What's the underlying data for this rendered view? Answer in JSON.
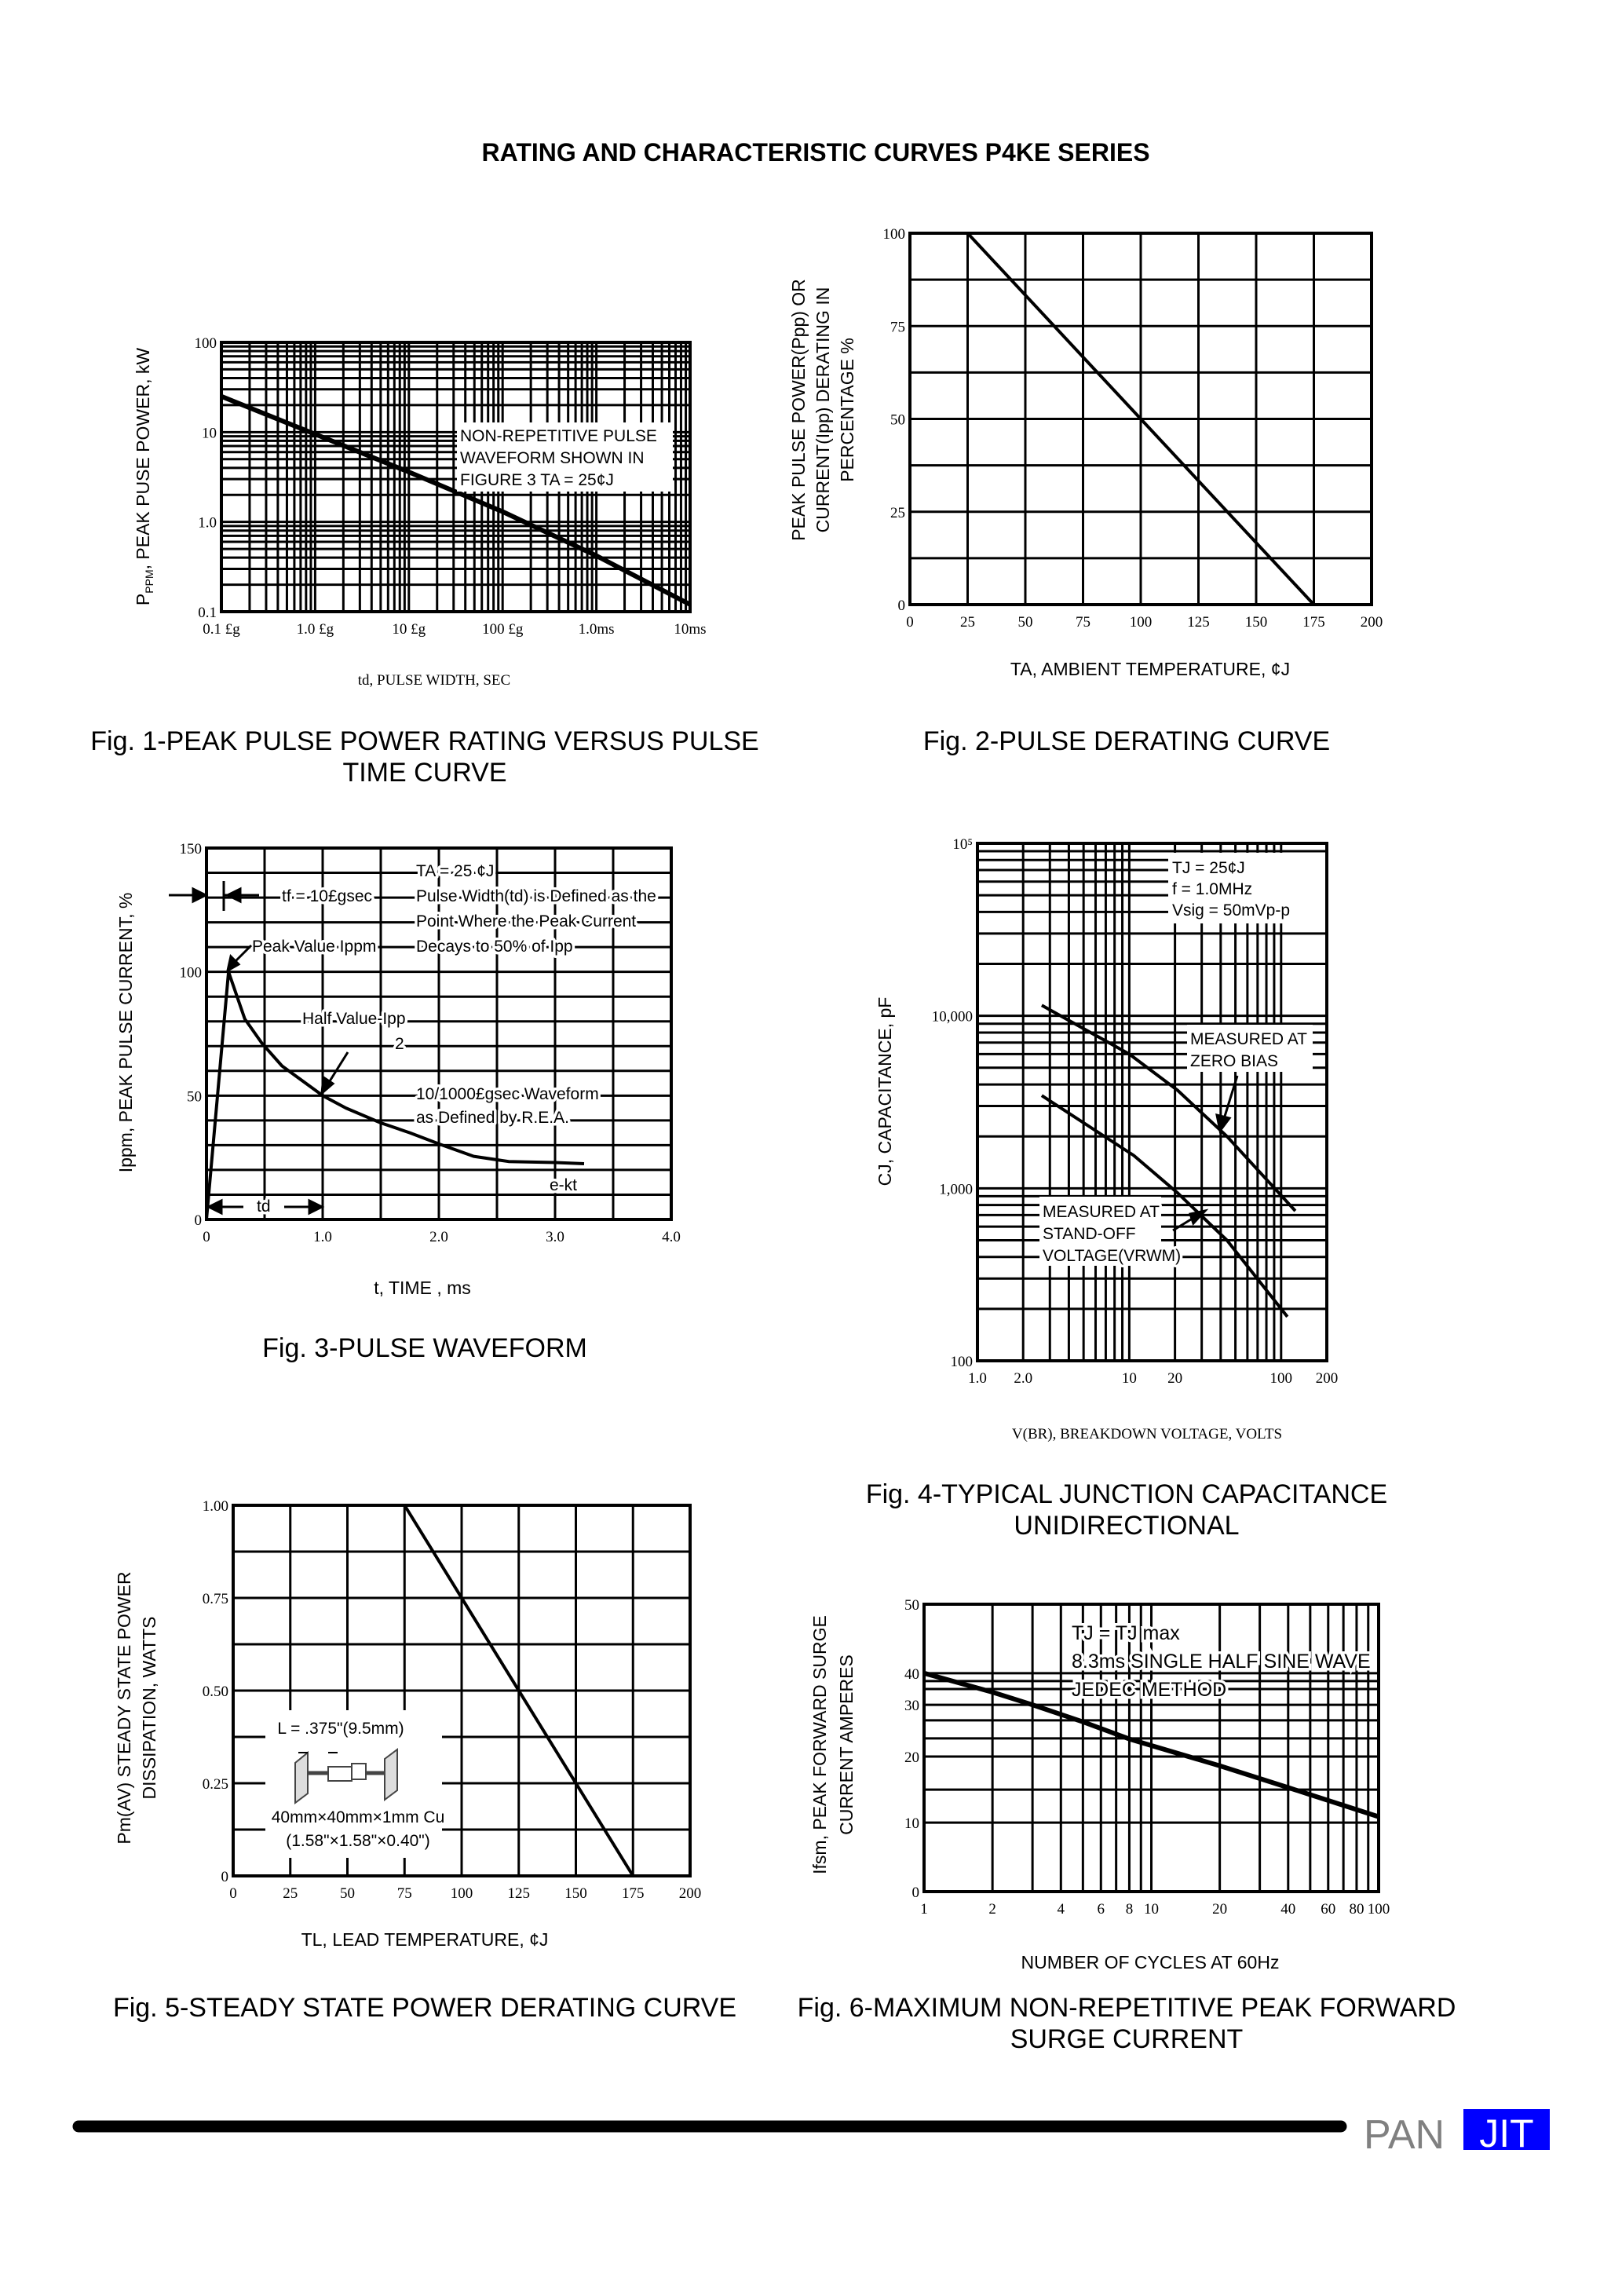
{
  "page_title": "RATING AND CHARACTERISTIC CURVES P4KE SERIES",
  "logo": {
    "text_left": "PAN",
    "text_right": "JIT",
    "gray": "#808080",
    "blue": "#0000FF"
  },
  "chart_data": [
    {
      "type": "line",
      "caption": [
        "Fig. 1-PEAK PULSE POWER RATING VERSUS PULSE",
        "TIME CURVE"
      ],
      "ylabel": "PPPM, PEAK PUSE POWER, kW",
      "ylabel_main": "P",
      "ylabel_sub": "PPM",
      "ylabel_rest": ", PEAK PUSE POWER, kW",
      "xlabel": "td, PULSE WIDTH, SEC",
      "xscale": "log",
      "yscale": "log",
      "xlim": [
        "0.1 £g",
        "10ms"
      ],
      "ylim": [
        0.1,
        100
      ],
      "xticks": [
        {
          "v": 1e-07,
          "label": "0.1  £g"
        },
        {
          "v": 1e-06,
          "label": "1.0 £g"
        },
        {
          "v": 1e-05,
          "label": "10 £g"
        },
        {
          "v": 0.0001,
          "label": "100 £g"
        },
        {
          "v": 0.001,
          "label": "1.0ms"
        },
        {
          "v": 0.01,
          "label": "10ms"
        }
      ],
      "yticks": [
        {
          "v": 100,
          "label": "100"
        },
        {
          "v": 10,
          "label": "10"
        },
        {
          "v": 1,
          "label": "1.0"
        },
        {
          "v": 0.1,
          "label": "0.1"
        }
      ],
      "grid": true,
      "annotation": [
        "NON-REPETITIVE PULSE",
        "WAVEFORM SHOWN IN",
        "FIGURE 3 TA = 25¢J"
      ],
      "series": [
        {
          "x": [
            1e-07,
            1e-06,
            1e-05,
            0.0001,
            0.001,
            0.01
          ],
          "y": [
            25,
            9.5,
            3.6,
            1.3,
            0.42,
            0.12
          ]
        }
      ]
    },
    {
      "type": "line",
      "caption": [
        "Fig. 2-PULSE DERATING CURVE"
      ],
      "ylabel_lines": [
        "PEAK PULSE POWER(Ppp) OR",
        "CURRENT(Ipp) DERATING IN",
        "PERCENTAGE %"
      ],
      "xlabel": "TA, AMBIENT TEMPERATURE, ¢J",
      "xlim": [
        0,
        200
      ],
      "ylim": [
        0,
        100
      ],
      "xticks": [
        {
          "v": 0,
          "label": "0"
        },
        {
          "v": 25,
          "label": "25"
        },
        {
          "v": 50,
          "label": "50"
        },
        {
          "v": 75,
          "label": "75"
        },
        {
          "v": 100,
          "label": "100"
        },
        {
          "v": 125,
          "label": "125"
        },
        {
          "v": 150,
          "label": "150"
        },
        {
          "v": 175,
          "label": "175"
        },
        {
          "v": 200,
          "label": "200"
        }
      ],
      "yticks": [
        {
          "v": 0,
          "label": "0"
        },
        {
          "v": 25,
          "label": "25"
        },
        {
          "v": 50,
          "label": "50"
        },
        {
          "v": 75,
          "label": "75"
        },
        {
          "v": 100,
          "label": "100"
        }
      ],
      "grid": true,
      "series": [
        {
          "x": [
            0,
            25,
            175
          ],
          "y": [
            100,
            100,
            0
          ]
        }
      ]
    },
    {
      "type": "line",
      "caption": [
        "Fig. 3-PULSE WAVEFORM"
      ],
      "ylabel": "Ippm, PEAK PULSE CURRENT, %",
      "xlabel": "t, TIME , ms",
      "xlim": [
        0,
        4.0
      ],
      "ylim": [
        0,
        150
      ],
      "xticks": [
        {
          "v": 0,
          "label": "0"
        },
        {
          "v": 1,
          "label": "1.0"
        },
        {
          "v": 2,
          "label": "2.0"
        },
        {
          "v": 3,
          "label": "3.0"
        },
        {
          "v": 4,
          "label": "4.0"
        }
      ],
      "yticks": [
        {
          "v": 0,
          "label": "0"
        },
        {
          "v": 50,
          "label": "50"
        },
        {
          "v": 100,
          "label": "100"
        },
        {
          "v": 150,
          "label": "150"
        }
      ],
      "grid": true,
      "annotations": {
        "ta": "TA = 25 ¢J",
        "def1": "Pulse Width(td) is Defined as the",
        "def2": "Point Where the Peak Current",
        "def3": "Decays to 50% of Ipp",
        "tf": "tf = 10£gsec",
        "peak": "Peak Value Ippm",
        "half": "Half Value-Ipp",
        "half_den": "2",
        "wave1": "10/1000£gsec Waveform",
        "wave2": "as Defined by R.E.A.",
        "ekt": "e-kt",
        "td": "td"
      },
      "series": [
        {
          "x": [
            0,
            0.19,
            0.33,
            0.48,
            0.65,
            1.0,
            1.2,
            1.5,
            1.75,
            2.0,
            2.3,
            2.6,
            3.0,
            3.25
          ],
          "y": [
            0,
            100,
            81,
            71,
            62,
            50,
            45,
            39,
            35,
            30.5,
            25.5,
            23.4,
            23,
            22.5
          ]
        }
      ]
    },
    {
      "type": "line",
      "caption": [
        "Fig. 4-TYPICAL JUNCTION CAPACITANCE",
        "UNIDIRECTIONAL"
      ],
      "ylabel": "CJ, CAPACITANCE, pF",
      "xlabel": "V(BR), BREAKDOWN VOLTAGE, VOLTS",
      "xscale": "log",
      "yscale": "log",
      "xlim": [
        1,
        200
      ],
      "ylim": [
        100,
        100000
      ],
      "xticks": [
        {
          "v": 1,
          "label": "1.0"
        },
        {
          "v": 2,
          "label": "2.0"
        },
        {
          "v": 10,
          "label": "10"
        },
        {
          "v": 20,
          "label": "20"
        },
        {
          "v": 100,
          "label": "100"
        },
        {
          "v": 200,
          "label": "200"
        }
      ],
      "yticks": [
        {
          "v": 100000,
          "label": "10⁵"
        },
        {
          "v": 10000,
          "label": "10,000"
        },
        {
          "v": 1000,
          "label": "1,000"
        },
        {
          "v": 100,
          "label": "100"
        }
      ],
      "grid": true,
      "conditions": [
        "TJ = 25¢J",
        "f = 1.0MHz",
        "Vsig = 50mVp-p"
      ],
      "label_zero_bias": [
        "MEASURED AT",
        "ZERO BIAS"
      ],
      "label_standoff": [
        "MEASURED AT",
        "STAND-OFF",
        "VOLTAGE(VRWM)"
      ],
      "series": [
        {
          "label": "MEASURED AT ZERO BIAS",
          "x": [
            2.65,
            10,
            20.8,
            44,
            124
          ],
          "y": [
            11500,
            6000,
            3700,
            2000,
            740
          ]
        },
        {
          "label": "MEASURED AT STAND-OFF VOLTAGE(VRWM)",
          "x": [
            2.65,
            10.7,
            20.8,
            44,
            110
          ],
          "y": [
            3450,
            1550,
            940,
            500,
            180
          ]
        }
      ]
    },
    {
      "type": "line",
      "caption": [
        "Fig. 5-STEADY STATE POWER DERATING CURVE"
      ],
      "ylabel_lines": [
        "Pm(AV) STEADY STATE POWER",
        "DISSIPATION, WATTS"
      ],
      "xlabel": "TL, LEAD TEMPERATURE, ¢J",
      "xlim": [
        0,
        200
      ],
      "ylim": [
        0,
        1.0
      ],
      "xticks": [
        {
          "v": 0,
          "label": "0"
        },
        {
          "v": 25,
          "label": "25"
        },
        {
          "v": 50,
          "label": "50"
        },
        {
          "v": 75,
          "label": "75"
        },
        {
          "v": 100,
          "label": "100"
        },
        {
          "v": 125,
          "label": "125"
        },
        {
          "v": 150,
          "label": "150"
        },
        {
          "v": 175,
          "label": "175"
        },
        {
          "v": 200,
          "label": "200"
        }
      ],
      "yticks": [
        {
          "v": 0,
          "label": "0"
        },
        {
          "v": 0.25,
          "label": "0.25"
        },
        {
          "v": 0.5,
          "label": "0.50"
        },
        {
          "v": 0.75,
          "label": "0.75"
        },
        {
          "v": 1.0,
          "label": "1.00"
        }
      ],
      "grid": true,
      "inset": [
        "L = .375\"(9.5mm)",
        "40mm×40mm×1mm Cu",
        "(1.58\"×1.58\"×0.40\")"
      ],
      "series": [
        {
          "x": [
            0,
            75,
            175
          ],
          "y": [
            1.0,
            1.0,
            0
          ]
        }
      ]
    },
    {
      "type": "line",
      "caption": [
        "Fig. 6-MAXIMUM NON-REPETITIVE PEAK FORWARD",
        "SURGE CURRENT"
      ],
      "ylabel_lines": [
        "Ifsm, PEAK FORWARD SURGE",
        "CURRENT AMPERES"
      ],
      "xlabel": "NUMBER OF CYCLES AT 60Hz",
      "xscale": "log",
      "xlim": [
        1,
        100
      ],
      "ylim": [
        0,
        50
      ],
      "xticks": [
        {
          "v": 1,
          "label": "1"
        },
        {
          "v": 2,
          "label": "2"
        },
        {
          "v": 4,
          "label": "4"
        },
        {
          "v": 6,
          "label": "6"
        },
        {
          "v": 8,
          "label": "8"
        },
        {
          "v": 10,
          "label": "10"
        },
        {
          "v": 20,
          "label": "20"
        },
        {
          "v": 40,
          "label": "40"
        },
        {
          "v": 60,
          "label": "60"
        },
        {
          "v": 80,
          "label": "80"
        },
        {
          "v": 100,
          "label": "100"
        }
      ],
      "yticks": [
        {
          "v": 50,
          "label": "50"
        },
        {
          "v": 40,
          "label": "40"
        },
        {
          "v": 30,
          "label": "30"
        },
        {
          "v": 20,
          "label": "20"
        },
        {
          "v": 10,
          "label": "10"
        },
        {
          "v": 0,
          "label": "0"
        }
      ],
      "grid": true,
      "conditions": [
        "TJ = TJ max",
        "8.3ms SINGLE HALF SINE WAVE",
        "JEDEC METHOD"
      ],
      "series": [
        {
          "x": [
            1,
            2,
            3,
            5,
            8,
            20,
            40,
            100
          ],
          "y": [
            40,
            34,
            30,
            26.7,
            23.4,
            18.6,
            15.3,
            10.9
          ]
        }
      ]
    }
  ]
}
